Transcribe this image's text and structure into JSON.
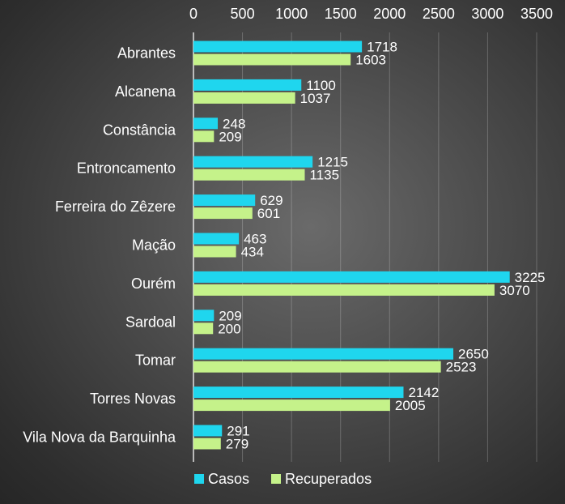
{
  "chart_data": {
    "type": "bar",
    "orientation": "horizontal",
    "categories": [
      "Abrantes",
      "Alcanena",
      "Constância",
      "Entroncamento",
      "Ferreira do Zêzere",
      "Mação",
      "Ourém",
      "Sardoal",
      "Tomar",
      "Torres Novas",
      "Vila Nova da Barquinha"
    ],
    "series": [
      {
        "name": "Casos",
        "color": "#1fd6ee",
        "values": [
          1718,
          1100,
          248,
          1215,
          629,
          463,
          3225,
          209,
          2650,
          2142,
          291
        ]
      },
      {
        "name": "Recuperados",
        "color": "#c5f28a",
        "values": [
          1603,
          1037,
          209,
          1135,
          601,
          434,
          3070,
          200,
          2523,
          2005,
          279
        ]
      }
    ],
    "xlim": [
      0,
      3500
    ],
    "xticks": [
      "0",
      "500",
      "1000",
      "1500",
      "2000",
      "2500",
      "3000",
      "3500"
    ],
    "x_axis_position": "top",
    "grid": true,
    "legend": "bottom",
    "title": "",
    "xlabel": "",
    "ylabel": ""
  }
}
